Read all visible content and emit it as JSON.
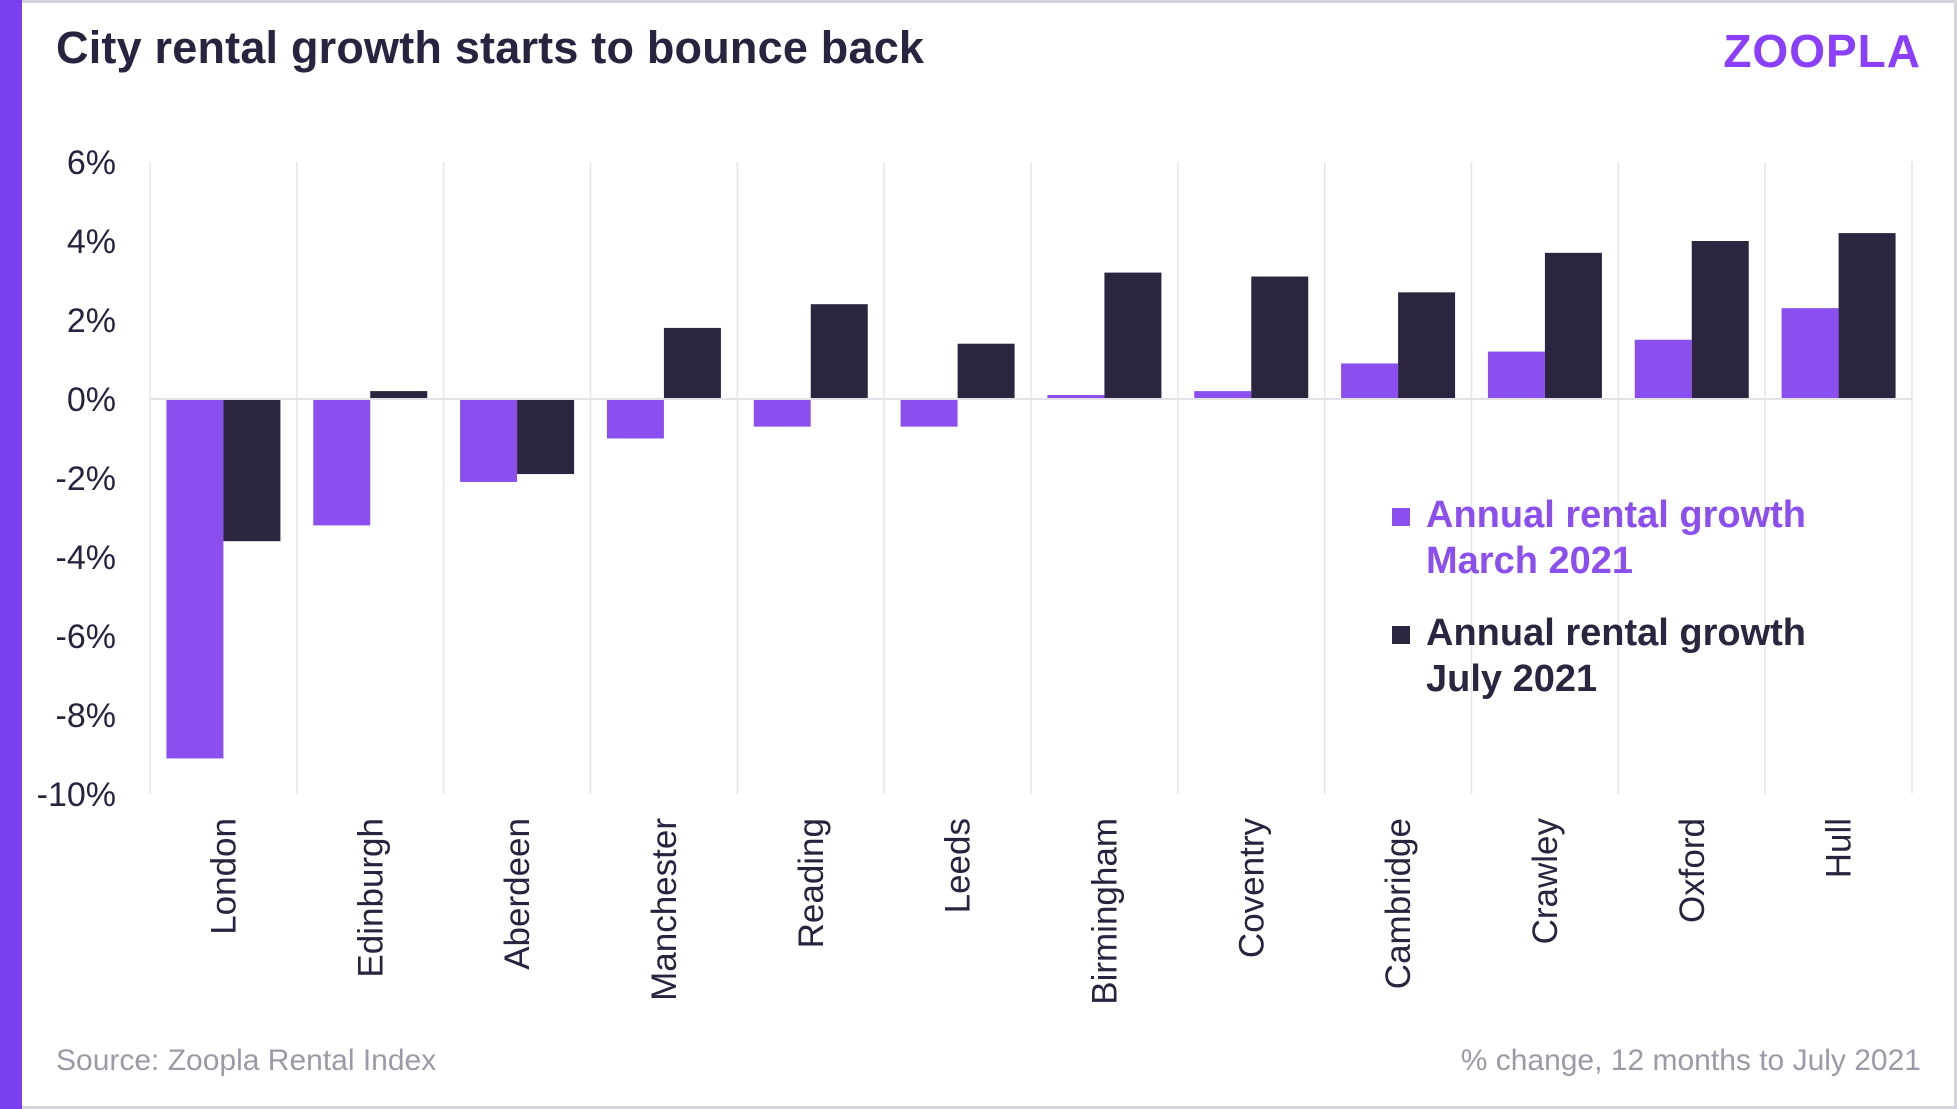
{
  "header": {
    "title": "City rental growth starts to bounce back",
    "logo_text": "ZOOPLA"
  },
  "footer": {
    "source": "Source: Zoopla Rental Index",
    "note": "% change, 12 months to July 2021"
  },
  "colors": {
    "accent": "#7b3ff2",
    "march": "#8b4ff0",
    "july": "#2b2540",
    "gridline": "#e6e6ea",
    "text": "#2a2340"
  },
  "chart_data": {
    "type": "bar",
    "title": "City rental growth starts to bounce back",
    "categories": [
      "London",
      "Edinburgh",
      "Aberdeen",
      "Manchester",
      "Reading",
      "Leeds",
      "Birmingham",
      "Coventry",
      "Cambridge",
      "Crawley",
      "Oxford",
      "Hull"
    ],
    "series": [
      {
        "name": "Annual rental growth March 2021",
        "color": "#8b4ff0",
        "values": [
          -9.1,
          -3.2,
          -2.1,
          -1.0,
          -0.7,
          -0.7,
          0.1,
          0.2,
          0.9,
          1.2,
          1.5,
          2.3
        ]
      },
      {
        "name": "Annual rental growth July 2021",
        "color": "#2b2540",
        "values": [
          -3.6,
          0.2,
          -1.9,
          1.8,
          2.4,
          1.4,
          3.2,
          3.1,
          2.7,
          3.7,
          4.0,
          4.2
        ]
      }
    ],
    "yticks": [
      6,
      4,
      2,
      0,
      -2,
      -4,
      -6,
      -8,
      -10
    ],
    "ytick_labels": [
      "6%",
      "4%",
      "2%",
      "0%",
      "-2%",
      "-4%",
      "-6%",
      "-8%",
      "-10%"
    ],
    "ylim": [
      -10,
      6
    ],
    "grid": true,
    "legend_position": "right",
    "legend": [
      {
        "line1": "Annual rental growth",
        "line2": "March 2021"
      },
      {
        "line1": "Annual rental growth",
        "line2": "July 2021"
      }
    ]
  }
}
